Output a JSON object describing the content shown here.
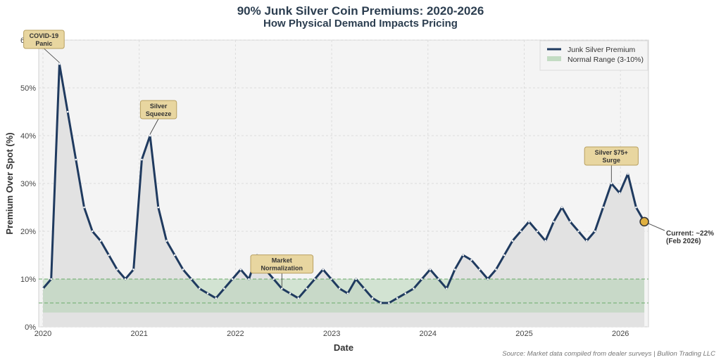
{
  "chart_data": {
    "type": "line",
    "title": "90% Junk Silver Coin Premiums: 2020-2026",
    "subtitle": "How Physical Demand Impacts Pricing",
    "xlabel": "Date",
    "ylabel": "Premium Over Spot (%)",
    "ylim": [
      0,
      60
    ],
    "yticks": [
      "0%",
      "10%",
      "20%",
      "30%",
      "40%",
      "50%",
      "60%"
    ],
    "xticks": [
      "2020",
      "2021",
      "2022",
      "2023",
      "2024",
      "2025",
      "2026"
    ],
    "grid": true,
    "legend_position": "top-right",
    "series": [
      {
        "name": "Junk Silver Premium",
        "color": "#1f3a5f",
        "start": "2020-01",
        "frequency": "monthly",
        "values": [
          8,
          10,
          55,
          45,
          35,
          25,
          20,
          18,
          15,
          12,
          10,
          12,
          35,
          40,
          25,
          18,
          15,
          12,
          10,
          8,
          7,
          6,
          8,
          10,
          12,
          10,
          15,
          12,
          10,
          8,
          7,
          6,
          8,
          10,
          12,
          10,
          8,
          7,
          10,
          8,
          6,
          5,
          5,
          6,
          7,
          8,
          10,
          12,
          10,
          8,
          12,
          15,
          14,
          12,
          10,
          12,
          15,
          18,
          20,
          22,
          20,
          18,
          22,
          25,
          22,
          20,
          18,
          20,
          25,
          30,
          28,
          32,
          25,
          22
        ]
      }
    ],
    "normal_range": {
      "name": "Normal Range (3-10%)",
      "low": 3,
      "high": 10,
      "color": "#a8cfa8"
    },
    "reference_lines": [
      5,
      10
    ],
    "annotations": [
      {
        "text": [
          "COVID-19",
          "Panic"
        ],
        "date": "2020-03",
        "value": 55
      },
      {
        "text": [
          "Silver",
          "Squeeze"
        ],
        "date": "2021-02",
        "value": 40
      },
      {
        "text": [
          "Market",
          "Normalization"
        ],
        "date": "2022-06",
        "value": 8
      },
      {
        "text": [
          "Silver $75+",
          "Surge"
        ],
        "date": "2025-10",
        "value": 30
      }
    ],
    "current": {
      "text": [
        "Current: ~22%",
        "(Feb 2026)"
      ],
      "date": "2026-02",
      "value": 22,
      "color": "#e0b040"
    },
    "source": "Source: Market data compiled from dealer surveys | Bullion Trading LLC"
  }
}
